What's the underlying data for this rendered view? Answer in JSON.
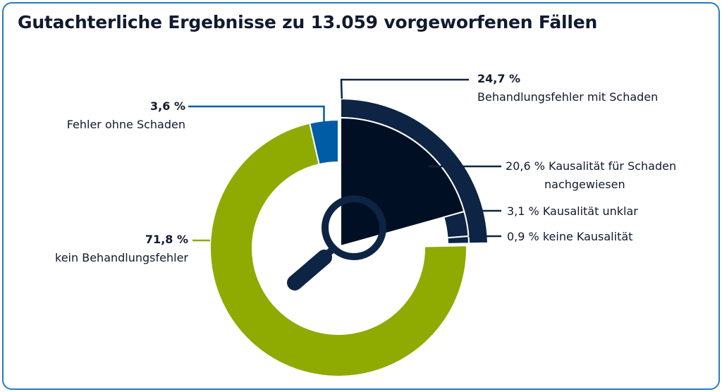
{
  "title": "Gutachterliche Ergebnisse zu 13.059 vorgeworfenen Fällen",
  "colors": {
    "green": "#8faa00",
    "blue": "#005ca5",
    "navy": "#0d2444",
    "dark": "#000f24",
    "frame": "#2a7bbd",
    "text": "#111a2e"
  },
  "icon": "magnifier-icon",
  "chart_data": {
    "type": "pie",
    "variant": "donut-with-exploded-subring",
    "unit": "%",
    "slices": [
      {
        "label": "Behandlungsfehler mit Schaden",
        "value": 24.7,
        "value_text": "24,7 %"
      },
      {
        "label": "kein Behandlungsfehler",
        "value": 71.8,
        "value_text": "71,8 %"
      },
      {
        "label": "Fehler ohne Schaden",
        "value": 3.6,
        "value_text": "3,6 %"
      }
    ],
    "breakdown_of": "Behandlungsfehler mit Schaden",
    "breakdown": [
      {
        "label_line1": "Kausalität für Schaden",
        "label_line2": "nachgewiesen",
        "value": 20.6,
        "value_text": "20,6 %"
      },
      {
        "label_line1": "Kausalität unklar",
        "label_line2": "",
        "value": 3.1,
        "value_text": "3,1 %"
      },
      {
        "label_line1": "keine Kausalität",
        "label_line2": "",
        "value": 0.9,
        "value_text": "0,9 %"
      }
    ]
  }
}
